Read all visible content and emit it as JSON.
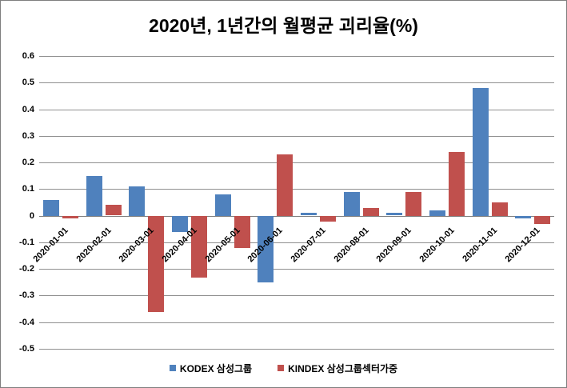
{
  "chart_data": {
    "type": "bar",
    "title": "2020년, 1년간의 월평균 괴리율(%)",
    "xlabel": "",
    "ylabel": "",
    "categories": [
      "2020-01-01",
      "2020-02-01",
      "2020-03-01",
      "2020-04-01",
      "2020-05-01",
      "2020-06-01",
      "2020-07-01",
      "2020-08-01",
      "2020-09-01",
      "2020-10-01",
      "2020-11-01",
      "2020-12-01"
    ],
    "series": [
      {
        "name": "KODEX 삼성그룹",
        "color": "#4F81BD",
        "values": [
          0.06,
          0.15,
          0.11,
          -0.06,
          0.08,
          -0.25,
          0.01,
          0.09,
          0.01,
          0.02,
          0.48,
          -0.01
        ]
      },
      {
        "name": "KINDEX 삼성그룹섹터가중",
        "color": "#C0504D",
        "values": [
          -0.01,
          0.04,
          -0.36,
          -0.23,
          -0.12,
          0.23,
          -0.02,
          0.03,
          0.09,
          0.24,
          0.05,
          -0.03
        ]
      }
    ],
    "ylim": [
      -0.5,
      0.6
    ],
    "ytick_labels": [
      "0.6",
      "0.5",
      "0.4",
      "0.3",
      "0.2",
      "0.1",
      "0",
      "-0.1",
      "-0.2",
      "-0.3",
      "-0.4",
      "-0.5"
    ],
    "grid": true,
    "legend_position": "bottom",
    "colors": {
      "gridline": "#909090",
      "zero_axis": "#7f7f7f",
      "text": "#000000",
      "background": "#ffffff"
    }
  }
}
